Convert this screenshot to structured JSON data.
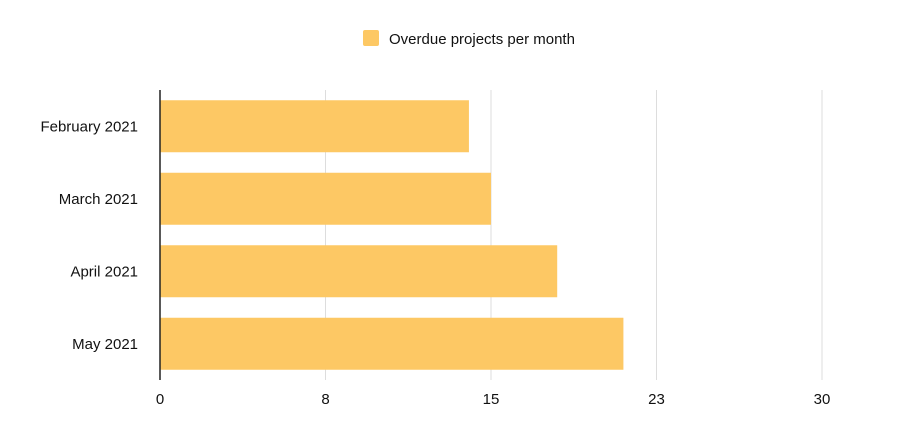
{
  "chart_data": {
    "type": "bar",
    "orientation": "horizontal",
    "title": "",
    "xlabel": "",
    "ylabel": "",
    "categories": [
      "February 2021",
      "March 2021",
      "April 2021",
      "May 2021"
    ],
    "series": [
      {
        "name": "Overdue projects per month",
        "values": [
          14,
          15,
          18,
          21
        ],
        "color": "#FDC864"
      }
    ],
    "xlim": [
      0,
      30
    ],
    "xticks": [
      0,
      7.5,
      15,
      22.5,
      30
    ],
    "xtick_labels": [
      "0",
      "8",
      "15",
      "23",
      "30"
    ],
    "grid": true,
    "grid_color": "#dddddd",
    "legend_position": "top-center"
  }
}
